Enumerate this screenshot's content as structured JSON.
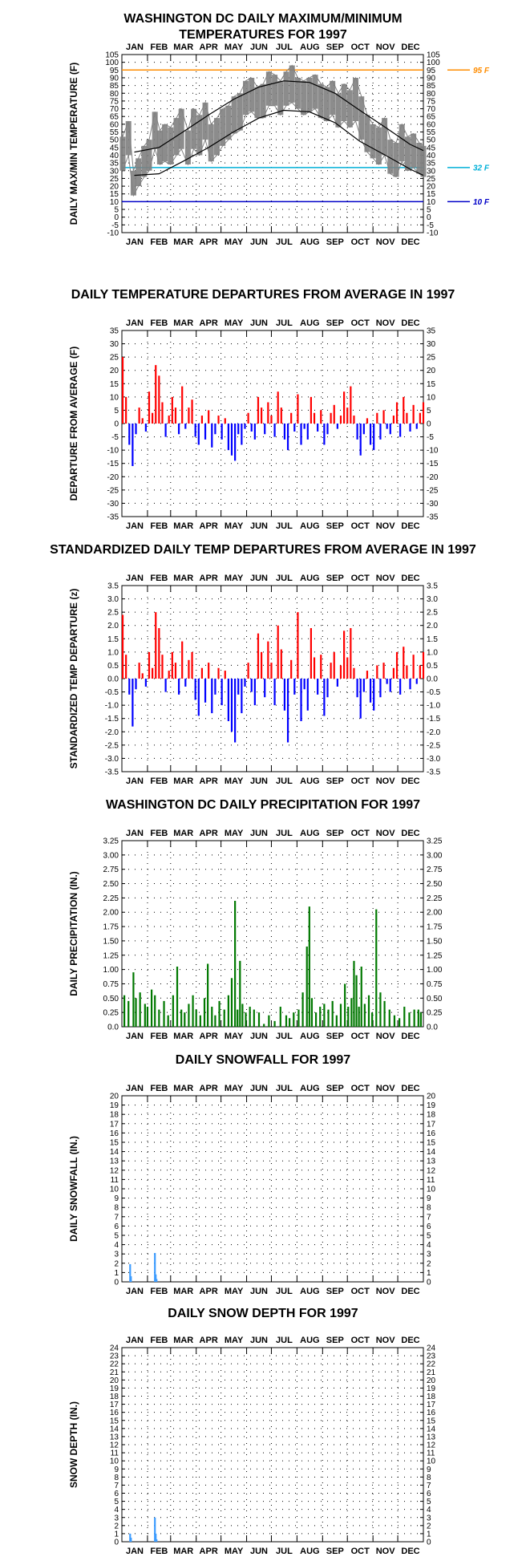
{
  "chart_data": [
    {
      "type": "line",
      "title": "WASHINGTON DC DAILY MAXIMUM/MINIMUM\nTEMPERATURES FOR 1997",
      "ylabel": "DAILY MAX/MIN TEMPERATURE (F)",
      "xlabel": "",
      "months": [
        "JAN",
        "FEB",
        "MAR",
        "APR",
        "MAY",
        "JUN",
        "JUL",
        "AUG",
        "SEP",
        "OCT",
        "NOV",
        "DEC"
      ],
      "ylim": [
        -10,
        105
      ],
      "ytick_step": 5,
      "yticks": [
        "-10",
        "-5",
        "0",
        "5",
        "10",
        "15",
        "20",
        "25",
        "30",
        "35",
        "40",
        "45",
        "50",
        "55",
        "60",
        "65",
        "70",
        "75",
        "80",
        "85",
        "90",
        "95",
        "100",
        "105"
      ],
      "grid": true,
      "series": [
        {
          "style": "daily_range",
          "color": "#808080",
          "x": [
            1,
            8,
            14,
            20,
            27,
            33,
            40,
            46,
            52,
            59,
            66,
            72,
            80,
            87,
            94,
            101,
            108,
            115,
            122,
            129,
            136,
            143,
            150,
            157,
            164,
            171,
            178,
            185,
            192,
            199,
            206,
            213,
            220,
            227,
            234,
            241,
            248,
            255,
            262,
            269,
            276,
            283,
            290,
            297,
            304,
            311,
            318,
            325,
            332,
            339,
            346,
            353,
            360,
            365
          ],
          "max": [
            52,
            62,
            30,
            38,
            46,
            50,
            68,
            56,
            60,
            58,
            64,
            70,
            56,
            70,
            66,
            74,
            60,
            64,
            70,
            72,
            78,
            80,
            88,
            90,
            84,
            86,
            94,
            92,
            88,
            94,
            98,
            90,
            88,
            90,
            92,
            86,
            84,
            88,
            80,
            86,
            82,
            90,
            78,
            66,
            60,
            58,
            64,
            50,
            48,
            60,
            52,
            54,
            48,
            46
          ],
          "min": [
            30,
            40,
            14,
            20,
            26,
            30,
            44,
            34,
            36,
            34,
            40,
            44,
            34,
            44,
            40,
            50,
            36,
            40,
            46,
            50,
            54,
            56,
            66,
            68,
            64,
            64,
            72,
            72,
            66,
            72,
            74,
            70,
            66,
            68,
            70,
            64,
            62,
            66,
            58,
            62,
            58,
            62,
            50,
            42,
            38,
            34,
            40,
            28,
            26,
            36,
            30,
            32,
            28,
            26
          ]
        },
        {
          "style": "normal_curve",
          "color": "#000000",
          "x": [
            15,
            45,
            74,
            105,
            135,
            166,
            196,
            227,
            258,
            288,
            319,
            349,
            365
          ],
          "normal_max": [
            42,
            45,
            55,
            66,
            76,
            84,
            88,
            87,
            80,
            69,
            58,
            47,
            43
          ],
          "normal_min": [
            27,
            28,
            36,
            45,
            55,
            64,
            69,
            68,
            61,
            49,
            40,
            31,
            27
          ]
        }
      ],
      "reference_lines": [
        {
          "value": 95,
          "label": "95 F",
          "color": "#ff8c00"
        },
        {
          "value": 32,
          "label": "32 F",
          "color": "#00b0d8"
        },
        {
          "value": 10,
          "label": "10 F",
          "color": "#0000c8"
        }
      ]
    },
    {
      "type": "bar",
      "title": "DAILY TEMPERATURE DEPARTURES FROM AVERAGE IN 1997",
      "ylabel": "DEPARTURE FROM AVERAGE (F)",
      "xlabel": "",
      "months": [
        "JAN",
        "FEB",
        "MAR",
        "APR",
        "MAY",
        "JUN",
        "JUL",
        "AUG",
        "SEP",
        "OCT",
        "NOV",
        "DEC"
      ],
      "ylim": [
        -35,
        35
      ],
      "ytick_step": 5,
      "yticks": [
        "-35",
        "-30",
        "-25",
        "-20",
        "-15",
        "-10",
        "-5",
        "0",
        "5",
        "10",
        "15",
        "20",
        "25",
        "30",
        "35"
      ],
      "grid": true,
      "positive_color": "#ff0000",
      "negative_color": "#0000ff",
      "x": [
        1,
        5,
        9,
        13,
        17,
        21,
        25,
        29,
        33,
        37,
        41,
        45,
        49,
        53,
        57,
        61,
        65,
        69,
        73,
        77,
        81,
        85,
        89,
        93,
        97,
        101,
        105,
        109,
        113,
        117,
        121,
        125,
        129,
        133,
        137,
        141,
        145,
        149,
        153,
        157,
        161,
        165,
        169,
        173,
        177,
        181,
        185,
        189,
        193,
        197,
        201,
        205,
        209,
        213,
        217,
        221,
        225,
        229,
        233,
        237,
        241,
        245,
        249,
        253,
        257,
        261,
        265,
        269,
        273,
        277,
        281,
        285,
        289,
        293,
        297,
        301,
        305,
        309,
        313,
        317,
        321,
        325,
        329,
        333,
        337,
        341,
        345,
        349,
        353,
        357,
        361,
        365
      ],
      "values": [
        25,
        10,
        -8,
        -16,
        -4,
        6,
        2,
        -3,
        12,
        4,
        22,
        18,
        8,
        -5,
        3,
        10,
        6,
        -4,
        14,
        -2,
        6,
        9,
        -5,
        -8,
        3,
        -6,
        5,
        -9,
        -4,
        3,
        -6,
        2,
        -10,
        -12,
        -14,
        -4,
        -8,
        -2,
        4,
        -3,
        -6,
        10,
        6,
        -4,
        8,
        3,
        -5,
        12,
        6,
        -6,
        -10,
        4,
        -3,
        11,
        -8,
        -2,
        -6,
        10,
        4,
        -3,
        5,
        -8,
        -4,
        4,
        7,
        -2,
        3,
        12,
        6,
        14,
        3,
        -6,
        -12,
        -4,
        2,
        -8,
        -10,
        4,
        -6,
        5,
        -2,
        -4,
        3,
        8,
        -5,
        10,
        4,
        -3,
        7,
        -2,
        4,
        8
      ]
    },
    {
      "type": "bar",
      "title": "STANDARDIZED DAILY TEMP DEPARTURES FROM AVERAGE IN 1997",
      "ylabel": "STANDARDIZED TEMP DEPARTURE (z)",
      "xlabel": "",
      "months": [
        "JAN",
        "FEB",
        "MAR",
        "APR",
        "MAY",
        "JUN",
        "JUL",
        "AUG",
        "SEP",
        "OCT",
        "NOV",
        "DEC"
      ],
      "ylim": [
        -3.5,
        3.5
      ],
      "ytick_step": 0.5,
      "yticks": [
        "-3.5",
        "-3.0",
        "-2.5",
        "-2.0",
        "-1.5",
        "-1.0",
        "-0.5",
        "0.0",
        "0.5",
        "1.0",
        "1.5",
        "2.0",
        "2.5",
        "3.0",
        "3.5"
      ],
      "grid": true,
      "positive_color": "#ff0000",
      "negative_color": "#0000ff",
      "x": [
        1,
        5,
        9,
        13,
        17,
        21,
        25,
        29,
        33,
        37,
        41,
        45,
        49,
        53,
        57,
        61,
        65,
        69,
        73,
        77,
        81,
        85,
        89,
        93,
        97,
        101,
        105,
        109,
        113,
        117,
        121,
        125,
        129,
        133,
        137,
        141,
        145,
        149,
        153,
        157,
        161,
        165,
        169,
        173,
        177,
        181,
        185,
        189,
        193,
        197,
        201,
        205,
        209,
        213,
        217,
        221,
        225,
        229,
        233,
        237,
        241,
        245,
        249,
        253,
        257,
        261,
        265,
        269,
        273,
        277,
        281,
        285,
        289,
        293,
        297,
        301,
        305,
        309,
        313,
        317,
        321,
        325,
        329,
        333,
        337,
        341,
        345,
        349,
        353,
        357,
        361,
        365
      ],
      "values": [
        2.4,
        0.9,
        -0.6,
        -1.8,
        -0.4,
        0.6,
        0.2,
        -0.3,
        1.0,
        0.4,
        2.5,
        1.9,
        0.9,
        -0.5,
        0.3,
        1.0,
        0.6,
        -0.6,
        1.4,
        -0.3,
        0.7,
        1.0,
        -0.8,
        -1.4,
        0.4,
        -0.9,
        0.6,
        -1.3,
        -0.6,
        0.4,
        -1.0,
        0.3,
        -1.6,
        -2.0,
        -2.4,
        -0.6,
        -1.3,
        -0.3,
        0.6,
        -0.5,
        -1.0,
        1.7,
        1.0,
        -0.7,
        1.4,
        0.6,
        -1.0,
        2.0,
        1.1,
        -1.2,
        -2.4,
        0.7,
        -0.6,
        2.5,
        -1.6,
        -0.4,
        -1.2,
        1.9,
        0.8,
        -0.6,
        0.9,
        -1.4,
        -0.7,
        0.6,
        1.0,
        -0.3,
        0.5,
        1.8,
        0.8,
        1.9,
        0.4,
        -0.7,
        -1.5,
        -0.5,
        0.3,
        -0.9,
        -1.2,
        0.5,
        -0.7,
        0.6,
        -0.2,
        -0.5,
        0.4,
        1.0,
        -0.6,
        1.2,
        0.5,
        -0.4,
        0.9,
        -0.2,
        0.5,
        1.0
      ]
    },
    {
      "type": "bar",
      "title": "WASHINGTON DC DAILY PRECIPITATION FOR 1997",
      "ylabel": "DAILY PRECIPITATION (IN.)",
      "xlabel": "",
      "months": [
        "JAN",
        "FEB",
        "MAR",
        "APR",
        "MAY",
        "JUN",
        "JUL",
        "AUG",
        "SEP",
        "OCT",
        "NOV",
        "DEC"
      ],
      "ylim": [
        0,
        3.25
      ],
      "ytick_step": 0.25,
      "yticks": [
        "0.0",
        "0.25",
        "0.50",
        "0.75",
        "1.00",
        "1.25",
        "1.50",
        "1.75",
        "2.00",
        "2.25",
        "2.50",
        "2.75",
        "3.00",
        "3.25"
      ],
      "grid": true,
      "color": "#007800",
      "x": [
        3,
        8,
        14,
        17,
        22,
        28,
        31,
        36,
        40,
        45,
        51,
        56,
        62,
        67,
        72,
        76,
        81,
        86,
        90,
        95,
        100,
        104,
        109,
        113,
        118,
        124,
        129,
        133,
        137,
        140,
        143,
        146,
        150,
        155,
        160,
        166,
        172,
        178,
        185,
        192,
        199,
        203,
        208,
        214,
        219,
        224,
        227,
        230,
        235,
        240,
        245,
        250,
        255,
        260,
        265,
        270,
        274,
        278,
        281,
        284,
        287,
        290,
        294,
        299,
        303,
        308,
        313,
        318,
        324,
        330,
        336,
        342,
        348,
        354,
        359,
        362
      ],
      "values": [
        0.55,
        0.45,
        0.95,
        0.5,
        0.6,
        0.4,
        0.35,
        0.65,
        0.55,
        0.3,
        0.45,
        0.2,
        0.55,
        1.05,
        0.3,
        0.25,
        0.4,
        0.55,
        0.3,
        0.2,
        0.5,
        1.1,
        0.35,
        0.2,
        0.45,
        0.3,
        0.55,
        0.85,
        2.2,
        0.3,
        1.15,
        0.4,
        0.25,
        0.35,
        0.3,
        0.25,
        0.05,
        0.2,
        0.1,
        0.35,
        0.2,
        0.15,
        0.25,
        0.3,
        0.6,
        1.4,
        2.1,
        0.5,
        0.25,
        0.35,
        0.4,
        0.3,
        0.45,
        0.2,
        0.4,
        0.75,
        0.35,
        0.5,
        1.15,
        0.9,
        0.35,
        1.05,
        0.4,
        0.55,
        0.25,
        2.05,
        0.6,
        0.45,
        0.3,
        0.2,
        0.15,
        0.35,
        0.25,
        0.3,
        0.3,
        0.25
      ]
    },
    {
      "type": "bar",
      "title": "DAILY SNOWFALL FOR 1997",
      "ylabel": "DAILY SNOWFALL (IN.)",
      "xlabel": "",
      "months": [
        "JAN",
        "FEB",
        "MAR",
        "APR",
        "MAY",
        "JUN",
        "JUL",
        "AUG",
        "SEP",
        "OCT",
        "NOV",
        "DEC"
      ],
      "ylim": [
        0,
        20
      ],
      "ytick_step": 1,
      "yticks": [
        "0",
        "1",
        "2",
        "3",
        "4",
        "5",
        "6",
        "7",
        "8",
        "9",
        "10",
        "11",
        "12",
        "13",
        "14",
        "15",
        "16",
        "17",
        "18",
        "19",
        "20"
      ],
      "grid": true,
      "color": "#3c9cff",
      "x": [
        10,
        11,
        40,
        41,
        42
      ],
      "values": [
        1.9,
        0.6,
        3.1,
        0.8,
        0.3
      ]
    },
    {
      "type": "bar",
      "title": "DAILY SNOW DEPTH FOR 1997",
      "ylabel": "SNOW DEPTH (IN.)",
      "xlabel": "",
      "months": [
        "JAN",
        "FEB",
        "MAR",
        "APR",
        "MAY",
        "JUN",
        "JUL",
        "AUG",
        "SEP",
        "OCT",
        "NOV",
        "DEC"
      ],
      "ylim": [
        0,
        24
      ],
      "ytick_step": 1,
      "yticks": [
        "0",
        "1",
        "2",
        "3",
        "4",
        "5",
        "6",
        "7",
        "8",
        "9",
        "10",
        "11",
        "12",
        "13",
        "14",
        "15",
        "16",
        "17",
        "18",
        "19",
        "20",
        "21",
        "22",
        "23",
        "24"
      ],
      "grid": true,
      "color": "#3c9cff",
      "x": [
        10,
        11,
        40,
        41,
        42
      ],
      "values": [
        1.0,
        0.5,
        3.0,
        1.0,
        0.3
      ]
    }
  ]
}
